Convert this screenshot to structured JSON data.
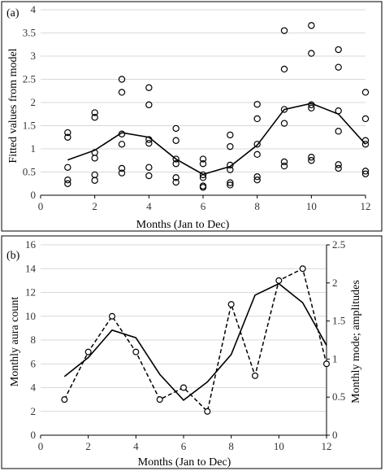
{
  "chart_data": [
    {
      "type": "scatter",
      "panel_label": "(a)",
      "xlabel": "Months (Jan to Dec)",
      "ylabel": "Fitted values from model",
      "xlim": [
        0,
        12
      ],
      "ylim": [
        0,
        4
      ],
      "xticks": [
        "0",
        "2",
        "4",
        "6",
        "8",
        "10",
        "12"
      ],
      "yticks": [
        "0",
        "0.5",
        "1",
        "1.5",
        "2",
        "2.5",
        "3",
        "3.5",
        "4"
      ],
      "grid": true,
      "points": [
        [
          1,
          0.25
        ],
        [
          1,
          0.33
        ],
        [
          1,
          0.6
        ],
        [
          1,
          1.25
        ],
        [
          1,
          1.35
        ],
        [
          2,
          0.32
        ],
        [
          2,
          0.44
        ],
        [
          2,
          0.8
        ],
        [
          2,
          0.92
        ],
        [
          2,
          1.68
        ],
        [
          2,
          1.78
        ],
        [
          3,
          0.48
        ],
        [
          3,
          0.58
        ],
        [
          3,
          1.1
        ],
        [
          3,
          1.32
        ],
        [
          3,
          2.22
        ],
        [
          3,
          2.5
        ],
        [
          4,
          0.42
        ],
        [
          4,
          0.6
        ],
        [
          4,
          1.12
        ],
        [
          4,
          1.2
        ],
        [
          4,
          1.95
        ],
        [
          4,
          2.32
        ],
        [
          5,
          0.28
        ],
        [
          5,
          0.38
        ],
        [
          5,
          0.68
        ],
        [
          5,
          0.78
        ],
        [
          5,
          1.18
        ],
        [
          5,
          1.44
        ],
        [
          6,
          0.17
        ],
        [
          6,
          0.2
        ],
        [
          6,
          0.38
        ],
        [
          6,
          0.44
        ],
        [
          6,
          0.68
        ],
        [
          6,
          0.78
        ],
        [
          7,
          0.22
        ],
        [
          7,
          0.27
        ],
        [
          7,
          0.55
        ],
        [
          7,
          0.65
        ],
        [
          7,
          1.05
        ],
        [
          7,
          1.3
        ],
        [
          8,
          0.33
        ],
        [
          8,
          0.4
        ],
        [
          8,
          0.88
        ],
        [
          8,
          1.1
        ],
        [
          8,
          1.65
        ],
        [
          8,
          1.96
        ],
        [
          9,
          0.63
        ],
        [
          9,
          0.72
        ],
        [
          9,
          1.55
        ],
        [
          9,
          1.85
        ],
        [
          9,
          2.72
        ],
        [
          9,
          3.55
        ],
        [
          10,
          0.75
        ],
        [
          10,
          0.82
        ],
        [
          10,
          1.88
        ],
        [
          10,
          1.95
        ],
        [
          10,
          3.06
        ],
        [
          10,
          3.66
        ],
        [
          11,
          0.58
        ],
        [
          11,
          0.66
        ],
        [
          11,
          1.38
        ],
        [
          11,
          1.82
        ],
        [
          11,
          2.76
        ],
        [
          11,
          3.14
        ],
        [
          12,
          0.46
        ],
        [
          12,
          0.52
        ],
        [
          12,
          1.1
        ],
        [
          12,
          1.18
        ],
        [
          12,
          1.65
        ],
        [
          12,
          2.22
        ]
      ],
      "series": [
        {
          "x": [
            1,
            2,
            3,
            4,
            5,
            6,
            7,
            8,
            9,
            10,
            11,
            12
          ],
          "values": [
            0.76,
            0.97,
            1.35,
            1.25,
            0.78,
            0.45,
            0.62,
            1.08,
            1.85,
            1.98,
            1.75,
            1.1
          ],
          "style": "solid"
        }
      ]
    },
    {
      "type": "line",
      "panel_label": "(b)",
      "xlabel": "Months (Jan to Dec)",
      "ylabel": "Monthly aura count",
      "y2label": "Monthly mode; amplitudes",
      "xlim": [
        0,
        12
      ],
      "ylim": [
        0,
        16
      ],
      "y2lim": [
        0,
        2.5
      ],
      "xticks": [
        "0",
        "2",
        "4",
        "6",
        "8",
        "10",
        "12"
      ],
      "yticks": [
        "0",
        "2",
        "4",
        "6",
        "8",
        "10",
        "12",
        "14",
        "16"
      ],
      "y2ticks": [
        "0",
        "0.5",
        "1",
        "1.5",
        "2",
        "2.5"
      ],
      "grid": true,
      "series": [
        {
          "axis": "left",
          "style": "dashed",
          "markers": true,
          "x": [
            1,
            2,
            3,
            4,
            5,
            6,
            7,
            8,
            9,
            10,
            11,
            12
          ],
          "values": [
            3,
            7,
            10,
            7,
            3,
            4,
            2,
            11,
            5,
            13,
            14,
            6
          ]
        },
        {
          "axis": "right",
          "style": "solid",
          "markers": false,
          "x": [
            1,
            2,
            3,
            4,
            5,
            6,
            7,
            8,
            9,
            10,
            11,
            12
          ],
          "values": [
            0.77,
            1.02,
            1.38,
            1.28,
            0.8,
            0.46,
            0.7,
            1.06,
            1.84,
            1.99,
            1.74,
            1.18
          ]
        }
      ]
    }
  ]
}
